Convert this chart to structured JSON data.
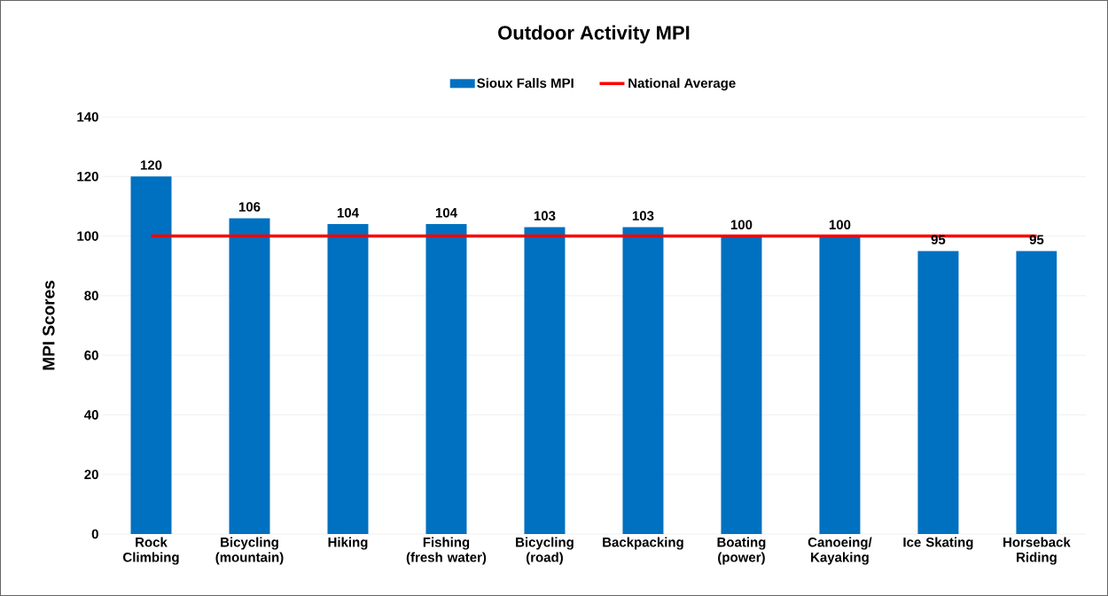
{
  "chart_data": {
    "type": "bar",
    "title": "Outdoor Activity MPI",
    "ylabel": "MPI Scores",
    "categories": [
      "Rock Climbing",
      "Bicycling (mountain)",
      "Hiking",
      "Fishing (fresh water)",
      "Bicycling (road)",
      "Backpacking",
      "Boating (power)",
      "Canoeing/ Kayaking",
      "Ice Skating",
      "Horseback Riding"
    ],
    "series": [
      {
        "name": "Sioux Falls MPI",
        "color": "#0070c0",
        "values": [
          120,
          106,
          104,
          104,
          103,
          103,
          100,
          100,
          95,
          95
        ],
        "value_labels": [
          "120",
          "106",
          "104",
          "104",
          "103",
          "103",
          "100",
          "100",
          "95",
          "95"
        ]
      },
      {
        "name": "National Average",
        "type": "line",
        "color": "#ff0000",
        "values": [
          100,
          100,
          100,
          100,
          100,
          100,
          100,
          100,
          100,
          100
        ]
      }
    ],
    "ylim": [
      0,
      140
    ],
    "yticks": [
      0,
      20,
      40,
      60,
      80,
      100,
      120,
      140
    ],
    "grid": "y",
    "legend": "top"
  }
}
